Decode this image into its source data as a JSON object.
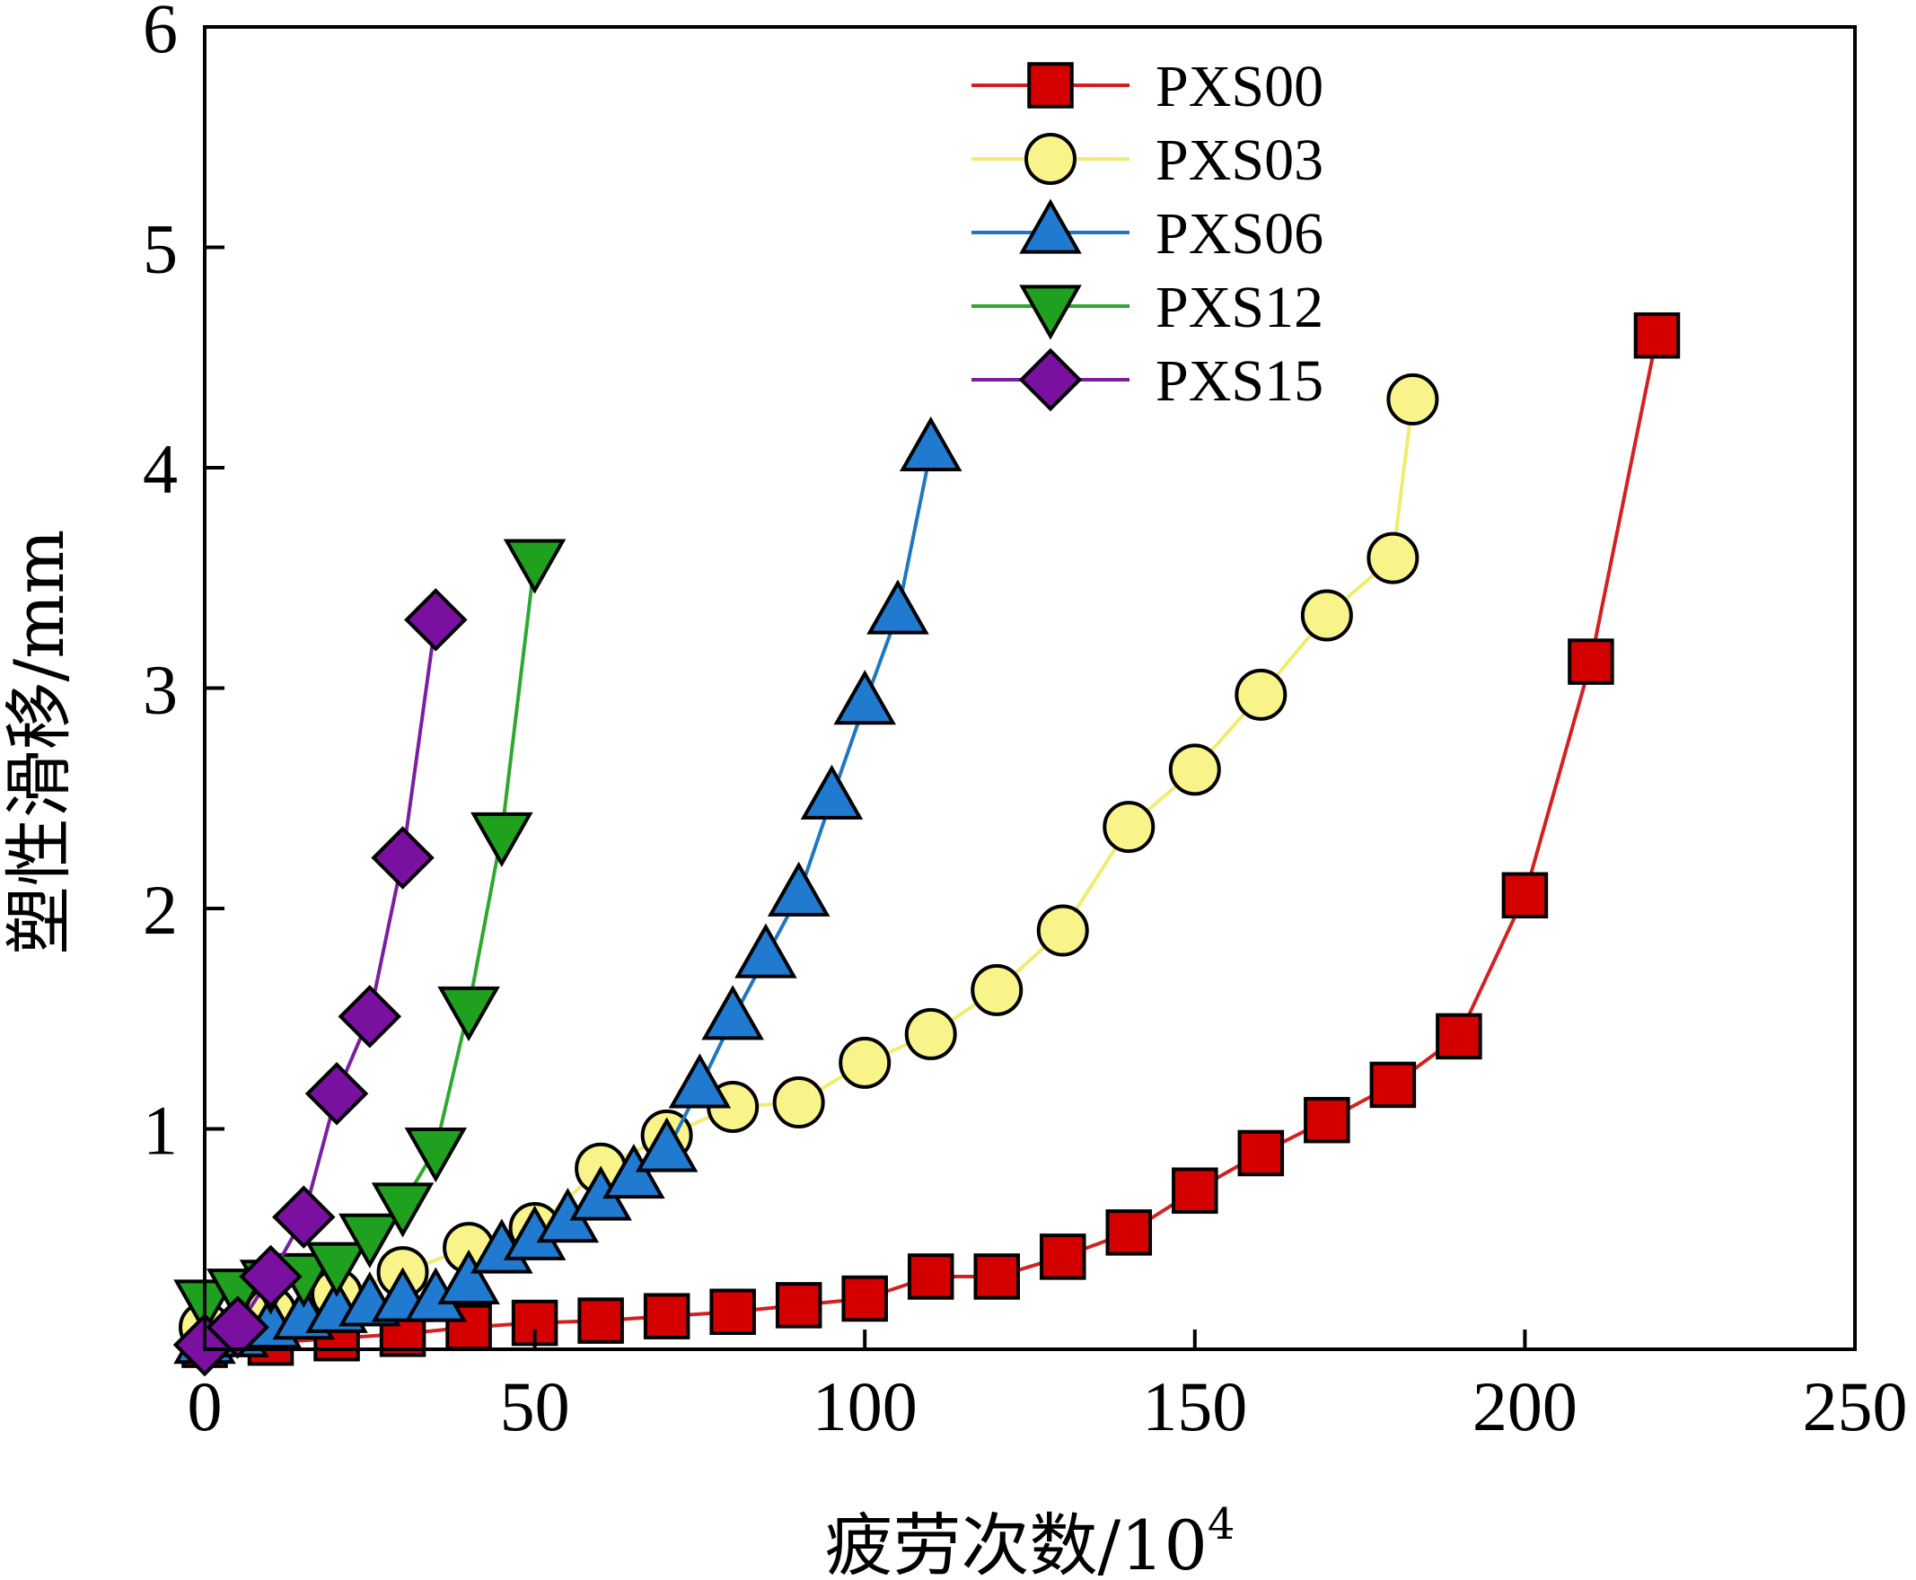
{
  "chart_data": {
    "type": "line",
    "title": "",
    "xlabel": "疲劳次数/10",
    "xlabel_sup": "4",
    "ylabel": "塑性滑移/mm",
    "xlim": [
      0,
      250
    ],
    "ylim": [
      0,
      6
    ],
    "xticks": [
      0,
      50,
      100,
      150,
      200,
      250
    ],
    "xtick_labels": [
      "0",
      "50",
      "100",
      "150",
      "200",
      "250"
    ],
    "yticks": [
      1,
      2,
      3,
      4,
      5,
      6
    ],
    "ytick_labels": [
      "1",
      "2",
      "3",
      "4",
      "5",
      "6"
    ],
    "grid": false,
    "legend_position": "top-center",
    "series": [
      {
        "name": "PXS00",
        "marker": "square",
        "line_color": "#d42020",
        "fill_color": "#d40000",
        "x": [
          0,
          10,
          20,
          30,
          40,
          50,
          60,
          70,
          80,
          90,
          100,
          110,
          120,
          130,
          140,
          150,
          160,
          170,
          180,
          190,
          200,
          210,
          220
        ],
        "y": [
          0.02,
          0.03,
          0.05,
          0.07,
          0.1,
          0.12,
          0.13,
          0.15,
          0.17,
          0.2,
          0.23,
          0.33,
          0.33,
          0.42,
          0.53,
          0.72,
          0.89,
          1.04,
          1.2,
          1.42,
          2.06,
          3.12,
          4.6
        ]
      },
      {
        "name": "PXS03",
        "marker": "circle",
        "line_color": "#f0ec70",
        "fill_color": "#f8f48a",
        "x": [
          0,
          10,
          20,
          30,
          40,
          50,
          60,
          70,
          80,
          90,
          100,
          110,
          120,
          130,
          140,
          150,
          160,
          170,
          180,
          183
        ],
        "y": [
          0.1,
          0.17,
          0.25,
          0.35,
          0.46,
          0.55,
          0.82,
          0.97,
          1.1,
          1.12,
          1.3,
          1.43,
          1.63,
          1.9,
          2.37,
          2.63,
          2.97,
          3.33,
          3.59,
          4.31
        ]
      },
      {
        "name": "PXS06",
        "marker": "triangle-up",
        "line_color": "#1f77c0",
        "fill_color": "#1f7ad0",
        "x": [
          0,
          5,
          10,
          15,
          20,
          25,
          30,
          35,
          40,
          45,
          50,
          55,
          60,
          65,
          70,
          75,
          80,
          85,
          90,
          95,
          100,
          105,
          110
        ],
        "y": [
          0.03,
          0.06,
          0.1,
          0.14,
          0.17,
          0.2,
          0.22,
          0.22,
          0.3,
          0.44,
          0.5,
          0.58,
          0.68,
          0.78,
          0.9,
          1.19,
          1.5,
          1.78,
          2.06,
          2.5,
          2.93,
          3.34,
          4.08
        ]
      },
      {
        "name": "PXS12",
        "marker": "triangle-down",
        "line_color": "#2fa82f",
        "fill_color": "#1fa01f",
        "x": [
          0,
          5,
          10,
          15,
          20,
          25,
          30,
          35,
          40,
          45,
          50
        ],
        "y": [
          0.22,
          0.27,
          0.31,
          0.34,
          0.39,
          0.52,
          0.66,
          0.91,
          1.55,
          2.34,
          3.58
        ]
      },
      {
        "name": "PXS15",
        "marker": "diamond",
        "line_color": "#7a1fa0",
        "fill_color": "#7a10a0",
        "x": [
          0,
          5,
          10,
          15,
          20,
          25,
          30,
          35
        ],
        "y": [
          0.02,
          0.1,
          0.33,
          0.6,
          1.16,
          1.51,
          2.23,
          3.31
        ]
      }
    ]
  }
}
